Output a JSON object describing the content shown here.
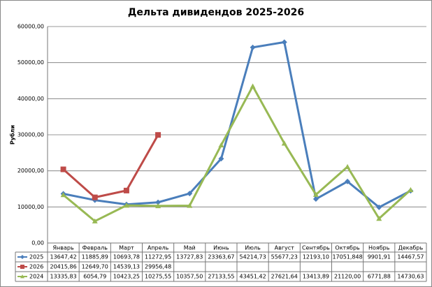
{
  "chart_data": {
    "type": "line",
    "title": "Дельта дивидендов 2025-2026",
    "y_label": "Рубли",
    "categories": [
      "Январь",
      "Февраль",
      "Март",
      "Апрель",
      "Май",
      "Июнь",
      "Июль",
      "Август",
      "Сентябрь",
      "Октябрь",
      "Ноябрь",
      "Декабрь"
    ],
    "ylim": [
      0,
      60000
    ],
    "yticks": [
      {
        "value": 0,
        "label": "0,00"
      },
      {
        "value": 10000,
        "label": "10000,00"
      },
      {
        "value": 20000,
        "label": "20000,00"
      },
      {
        "value": 30000,
        "label": "30000,00"
      },
      {
        "value": 40000,
        "label": "40000,00"
      },
      {
        "value": 50000,
        "label": "50000,00"
      },
      {
        "value": 60000,
        "label": "60000,00"
      }
    ],
    "grid": true,
    "series": [
      {
        "name": "2025",
        "color": "#4a7ebb",
        "marker": "diamond",
        "values": [
          13647.42,
          11885.89,
          10693.78,
          11272.95,
          13727.83,
          23363.67,
          54214.73,
          55677.23,
          12193.1,
          17051.848,
          9901.91,
          14467.57
        ],
        "value_labels": [
          "13647,42",
          "11885,89",
          "10693,78",
          "11272,95",
          "13727,83",
          "23363,67",
          "54214,73",
          "55677,23",
          "12193,10",
          "17051,848",
          "9901,91",
          "14467,57"
        ]
      },
      {
        "name": "2026",
        "color": "#be4b48",
        "marker": "square",
        "values": [
          20415.86,
          12649.7,
          14539.13,
          29956.48,
          null,
          null,
          null,
          null,
          null,
          null,
          null,
          null
        ],
        "value_labels": [
          "20415,86",
          "12649,70",
          "14539,13",
          "29956,48",
          null,
          null,
          null,
          null,
          null,
          null,
          null,
          null
        ]
      },
      {
        "name": "2024",
        "color": "#98b954",
        "marker": "triangle",
        "values": [
          13335.83,
          6054.79,
          10423.25,
          10275.55,
          10357.5,
          27133.55,
          43451.42,
          27621.64,
          13413.89,
          21120.0,
          6771.88,
          14730.63
        ],
        "value_labels": [
          "13335,83",
          "6054,79",
          "10423,25",
          "10275,55",
          "10357,50",
          "27133,55",
          "43451,42",
          "27621,64",
          "13413,89",
          "21120,00",
          "6771,88",
          "14730,63"
        ]
      }
    ]
  }
}
